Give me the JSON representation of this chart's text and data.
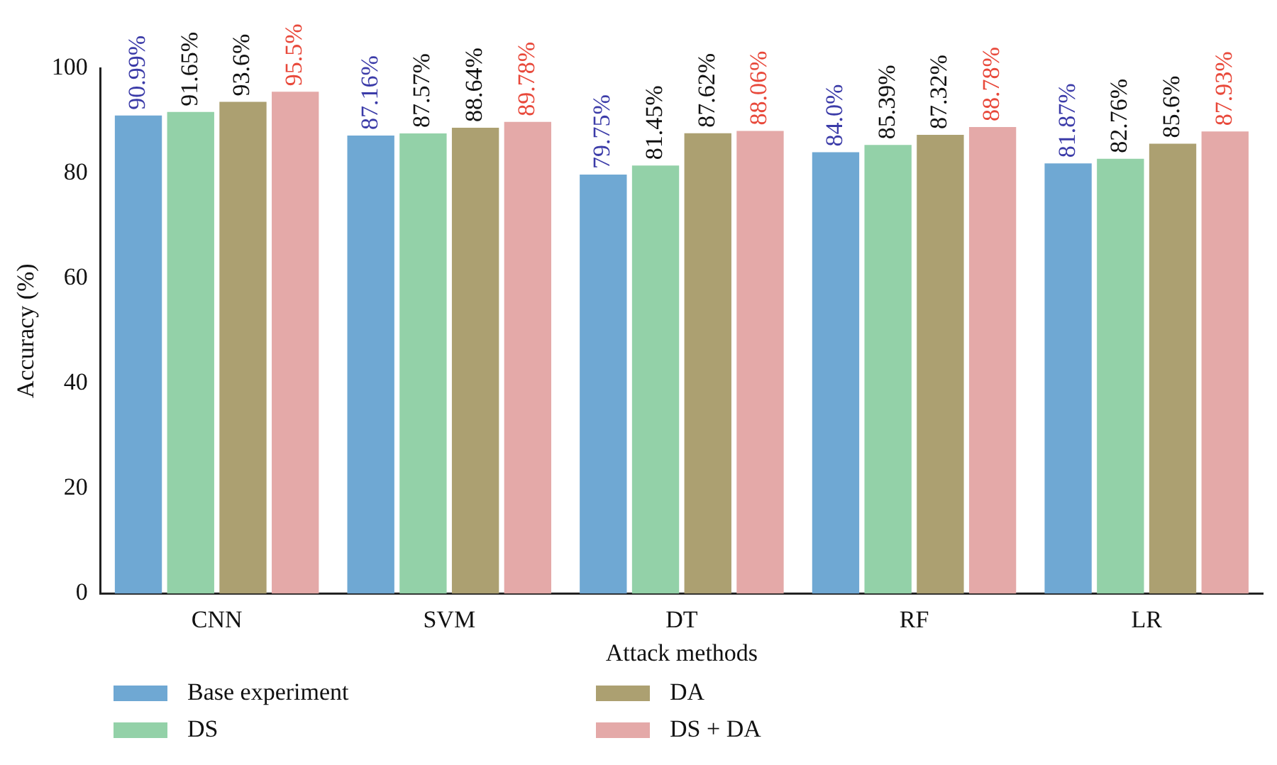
{
  "chart_data": {
    "type": "bar",
    "xlabel": "Attack methods",
    "ylabel": "Accuracy (%)",
    "categories": [
      "CNN",
      "SVM",
      "DT",
      "RF",
      "LR"
    ],
    "series": [
      {
        "name": "Base experiment",
        "color": "#6fa8d3",
        "values": [
          90.99,
          87.16,
          79.75,
          84.0,
          81.87
        ]
      },
      {
        "name": "DS",
        "color": "#93d1a8",
        "values": [
          91.65,
          87.57,
          81.45,
          85.39,
          82.76
        ]
      },
      {
        "name": "DA",
        "color": "#aca071",
        "values": [
          93.6,
          88.64,
          87.62,
          87.32,
          85.6
        ]
      },
      {
        "name": "DS + DA",
        "color": "#e4a9a8",
        "values": [
          95.5,
          89.78,
          88.06,
          88.78,
          87.93
        ]
      }
    ],
    "value_labels": [
      [
        "90.99%",
        "87.16%",
        "79.75%",
        "84.0%",
        "81.87%"
      ],
      [
        "91.65%",
        "87.57%",
        "81.45%",
        "85.39%",
        "82.76%"
      ],
      [
        "93.6%",
        "88.64%",
        "87.62%",
        "87.32%",
        "85.6%"
      ],
      [
        "95.5%",
        "89.78%",
        "88.06%",
        "88.78%",
        "87.93%"
      ]
    ],
    "ylim": [
      0,
      100
    ],
    "yticks": [
      0,
      20,
      40,
      60,
      80,
      100
    ],
    "grid": false,
    "legend": "bottom"
  }
}
